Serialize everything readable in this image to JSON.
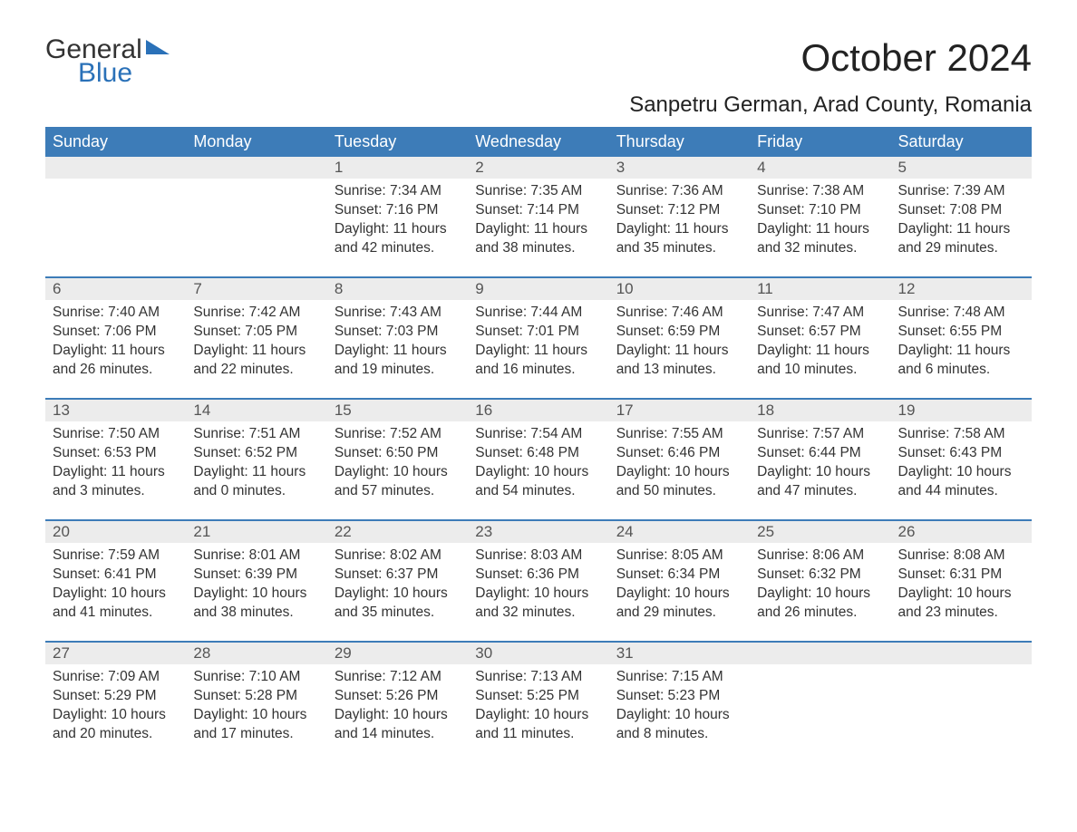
{
  "logo": {
    "text1": "General",
    "text2": "Blue",
    "accent_color": "#2a71b8"
  },
  "title": "October 2024",
  "location": "Sanpetru German, Arad County, Romania",
  "colors": {
    "header_bg": "#3d7cb8",
    "header_text": "#ffffff",
    "date_bg": "#ececec",
    "week_border": "#3d7cb8",
    "body_text": "#333333"
  },
  "day_names": [
    "Sunday",
    "Monday",
    "Tuesday",
    "Wednesday",
    "Thursday",
    "Friday",
    "Saturday"
  ],
  "weeks": [
    {
      "days": [
        {
          "date": "",
          "lines": []
        },
        {
          "date": "",
          "lines": []
        },
        {
          "date": "1",
          "lines": [
            "Sunrise: 7:34 AM",
            "Sunset: 7:16 PM",
            "Daylight: 11 hours",
            "and 42 minutes."
          ]
        },
        {
          "date": "2",
          "lines": [
            "Sunrise: 7:35 AM",
            "Sunset: 7:14 PM",
            "Daylight: 11 hours",
            "and 38 minutes."
          ]
        },
        {
          "date": "3",
          "lines": [
            "Sunrise: 7:36 AM",
            "Sunset: 7:12 PM",
            "Daylight: 11 hours",
            "and 35 minutes."
          ]
        },
        {
          "date": "4",
          "lines": [
            "Sunrise: 7:38 AM",
            "Sunset: 7:10 PM",
            "Daylight: 11 hours",
            "and 32 minutes."
          ]
        },
        {
          "date": "5",
          "lines": [
            "Sunrise: 7:39 AM",
            "Sunset: 7:08 PM",
            "Daylight: 11 hours",
            "and 29 minutes."
          ]
        }
      ]
    },
    {
      "days": [
        {
          "date": "6",
          "lines": [
            "Sunrise: 7:40 AM",
            "Sunset: 7:06 PM",
            "Daylight: 11 hours",
            "and 26 minutes."
          ]
        },
        {
          "date": "7",
          "lines": [
            "Sunrise: 7:42 AM",
            "Sunset: 7:05 PM",
            "Daylight: 11 hours",
            "and 22 minutes."
          ]
        },
        {
          "date": "8",
          "lines": [
            "Sunrise: 7:43 AM",
            "Sunset: 7:03 PM",
            "Daylight: 11 hours",
            "and 19 minutes."
          ]
        },
        {
          "date": "9",
          "lines": [
            "Sunrise: 7:44 AM",
            "Sunset: 7:01 PM",
            "Daylight: 11 hours",
            "and 16 minutes."
          ]
        },
        {
          "date": "10",
          "lines": [
            "Sunrise: 7:46 AM",
            "Sunset: 6:59 PM",
            "Daylight: 11 hours",
            "and 13 minutes."
          ]
        },
        {
          "date": "11",
          "lines": [
            "Sunrise: 7:47 AM",
            "Sunset: 6:57 PM",
            "Daylight: 11 hours",
            "and 10 minutes."
          ]
        },
        {
          "date": "12",
          "lines": [
            "Sunrise: 7:48 AM",
            "Sunset: 6:55 PM",
            "Daylight: 11 hours",
            "and 6 minutes."
          ]
        }
      ]
    },
    {
      "days": [
        {
          "date": "13",
          "lines": [
            "Sunrise: 7:50 AM",
            "Sunset: 6:53 PM",
            "Daylight: 11 hours",
            "and 3 minutes."
          ]
        },
        {
          "date": "14",
          "lines": [
            "Sunrise: 7:51 AM",
            "Sunset: 6:52 PM",
            "Daylight: 11 hours",
            "and 0 minutes."
          ]
        },
        {
          "date": "15",
          "lines": [
            "Sunrise: 7:52 AM",
            "Sunset: 6:50 PM",
            "Daylight: 10 hours",
            "and 57 minutes."
          ]
        },
        {
          "date": "16",
          "lines": [
            "Sunrise: 7:54 AM",
            "Sunset: 6:48 PM",
            "Daylight: 10 hours",
            "and 54 minutes."
          ]
        },
        {
          "date": "17",
          "lines": [
            "Sunrise: 7:55 AM",
            "Sunset: 6:46 PM",
            "Daylight: 10 hours",
            "and 50 minutes."
          ]
        },
        {
          "date": "18",
          "lines": [
            "Sunrise: 7:57 AM",
            "Sunset: 6:44 PM",
            "Daylight: 10 hours",
            "and 47 minutes."
          ]
        },
        {
          "date": "19",
          "lines": [
            "Sunrise: 7:58 AM",
            "Sunset: 6:43 PM",
            "Daylight: 10 hours",
            "and 44 minutes."
          ]
        }
      ]
    },
    {
      "days": [
        {
          "date": "20",
          "lines": [
            "Sunrise: 7:59 AM",
            "Sunset: 6:41 PM",
            "Daylight: 10 hours",
            "and 41 minutes."
          ]
        },
        {
          "date": "21",
          "lines": [
            "Sunrise: 8:01 AM",
            "Sunset: 6:39 PM",
            "Daylight: 10 hours",
            "and 38 minutes."
          ]
        },
        {
          "date": "22",
          "lines": [
            "Sunrise: 8:02 AM",
            "Sunset: 6:37 PM",
            "Daylight: 10 hours",
            "and 35 minutes."
          ]
        },
        {
          "date": "23",
          "lines": [
            "Sunrise: 8:03 AM",
            "Sunset: 6:36 PM",
            "Daylight: 10 hours",
            "and 32 minutes."
          ]
        },
        {
          "date": "24",
          "lines": [
            "Sunrise: 8:05 AM",
            "Sunset: 6:34 PM",
            "Daylight: 10 hours",
            "and 29 minutes."
          ]
        },
        {
          "date": "25",
          "lines": [
            "Sunrise: 8:06 AM",
            "Sunset: 6:32 PM",
            "Daylight: 10 hours",
            "and 26 minutes."
          ]
        },
        {
          "date": "26",
          "lines": [
            "Sunrise: 8:08 AM",
            "Sunset: 6:31 PM",
            "Daylight: 10 hours",
            "and 23 minutes."
          ]
        }
      ]
    },
    {
      "days": [
        {
          "date": "27",
          "lines": [
            "Sunrise: 7:09 AM",
            "Sunset: 5:29 PM",
            "Daylight: 10 hours",
            "and 20 minutes."
          ]
        },
        {
          "date": "28",
          "lines": [
            "Sunrise: 7:10 AM",
            "Sunset: 5:28 PM",
            "Daylight: 10 hours",
            "and 17 minutes."
          ]
        },
        {
          "date": "29",
          "lines": [
            "Sunrise: 7:12 AM",
            "Sunset: 5:26 PM",
            "Daylight: 10 hours",
            "and 14 minutes."
          ]
        },
        {
          "date": "30",
          "lines": [
            "Sunrise: 7:13 AM",
            "Sunset: 5:25 PM",
            "Daylight: 10 hours",
            "and 11 minutes."
          ]
        },
        {
          "date": "31",
          "lines": [
            "Sunrise: 7:15 AM",
            "Sunset: 5:23 PM",
            "Daylight: 10 hours",
            "and 8 minutes."
          ]
        },
        {
          "date": "",
          "lines": []
        },
        {
          "date": "",
          "lines": []
        }
      ]
    }
  ]
}
